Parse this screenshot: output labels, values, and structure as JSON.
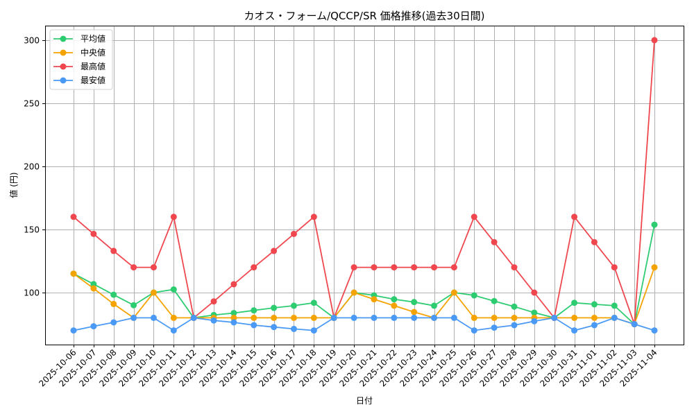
{
  "chart_data": {
    "type": "line",
    "title": "カオス・フォーム/QCCP/SR 価格推移(過去30日間)",
    "xlabel": "日付",
    "ylabel": "値 (円)",
    "ylim": [
      58.8,
      311.5
    ],
    "yticks": [
      100,
      150,
      200,
      250,
      300
    ],
    "grid": true,
    "legend_position": "upper left",
    "categories": [
      "2025-10-06",
      "2025-10-07",
      "2025-10-08",
      "2025-10-09",
      "2025-10-10",
      "2025-10-11",
      "2025-10-12",
      "2025-10-13",
      "2025-10-14",
      "2025-10-15",
      "2025-10-16",
      "2025-10-17",
      "2025-10-18",
      "2025-10-19",
      "2025-10-20",
      "2025-10-21",
      "2025-10-22",
      "2025-10-23",
      "2025-10-24",
      "2025-10-25",
      "2025-10-26",
      "2025-10-27",
      "2025-10-28",
      "2025-10-29",
      "2025-10-30",
      "2025-10-31",
      "2025-11-01",
      "2025-11-02",
      "2025-11-03",
      "2025-11-04"
    ],
    "series": [
      {
        "name": "平均値",
        "color": "#2ecc71",
        "values": [
          115,
          106.7,
          98.3,
          90,
          100,
          102.5,
          80,
          82.2,
          83.8,
          85.9,
          87.9,
          89.6,
          91.9,
          80,
          100,
          97.8,
          94.7,
          92.5,
          89.6,
          100,
          97.8,
          93.3,
          88.9,
          84.1,
          80,
          91.9,
          90.7,
          89.6,
          75,
          153.8
        ]
      },
      {
        "name": "中央値",
        "color": "#f5a300",
        "values": [
          115,
          103.3,
          91,
          80,
          100,
          80,
          80,
          80,
          80,
          80,
          80,
          80,
          80,
          80,
          100,
          94.7,
          89.6,
          84.6,
          80,
          100,
          80,
          80,
          80,
          80,
          80,
          80,
          80,
          80,
          75,
          120
        ]
      },
      {
        "name": "最高値",
        "color": "#f0474f",
        "values": [
          160,
          146.5,
          133,
          120,
          120,
          160,
          80,
          93,
          106.6,
          120,
          133,
          146.5,
          160,
          80,
          120,
          120,
          120,
          120,
          120,
          120,
          160,
          140,
          120,
          100,
          80,
          160,
          140,
          120,
          75,
          300
        ]
      },
      {
        "name": "最安値",
        "color": "#4a9af5",
        "values": [
          70,
          73.3,
          76.4,
          80,
          80,
          70,
          80,
          77.9,
          76.4,
          74.2,
          72.7,
          71.2,
          70,
          80,
          80,
          80,
          80,
          80,
          80,
          80,
          70,
          72.2,
          74.2,
          77.3,
          80,
          70,
          74.2,
          80,
          75,
          70
        ]
      }
    ]
  }
}
